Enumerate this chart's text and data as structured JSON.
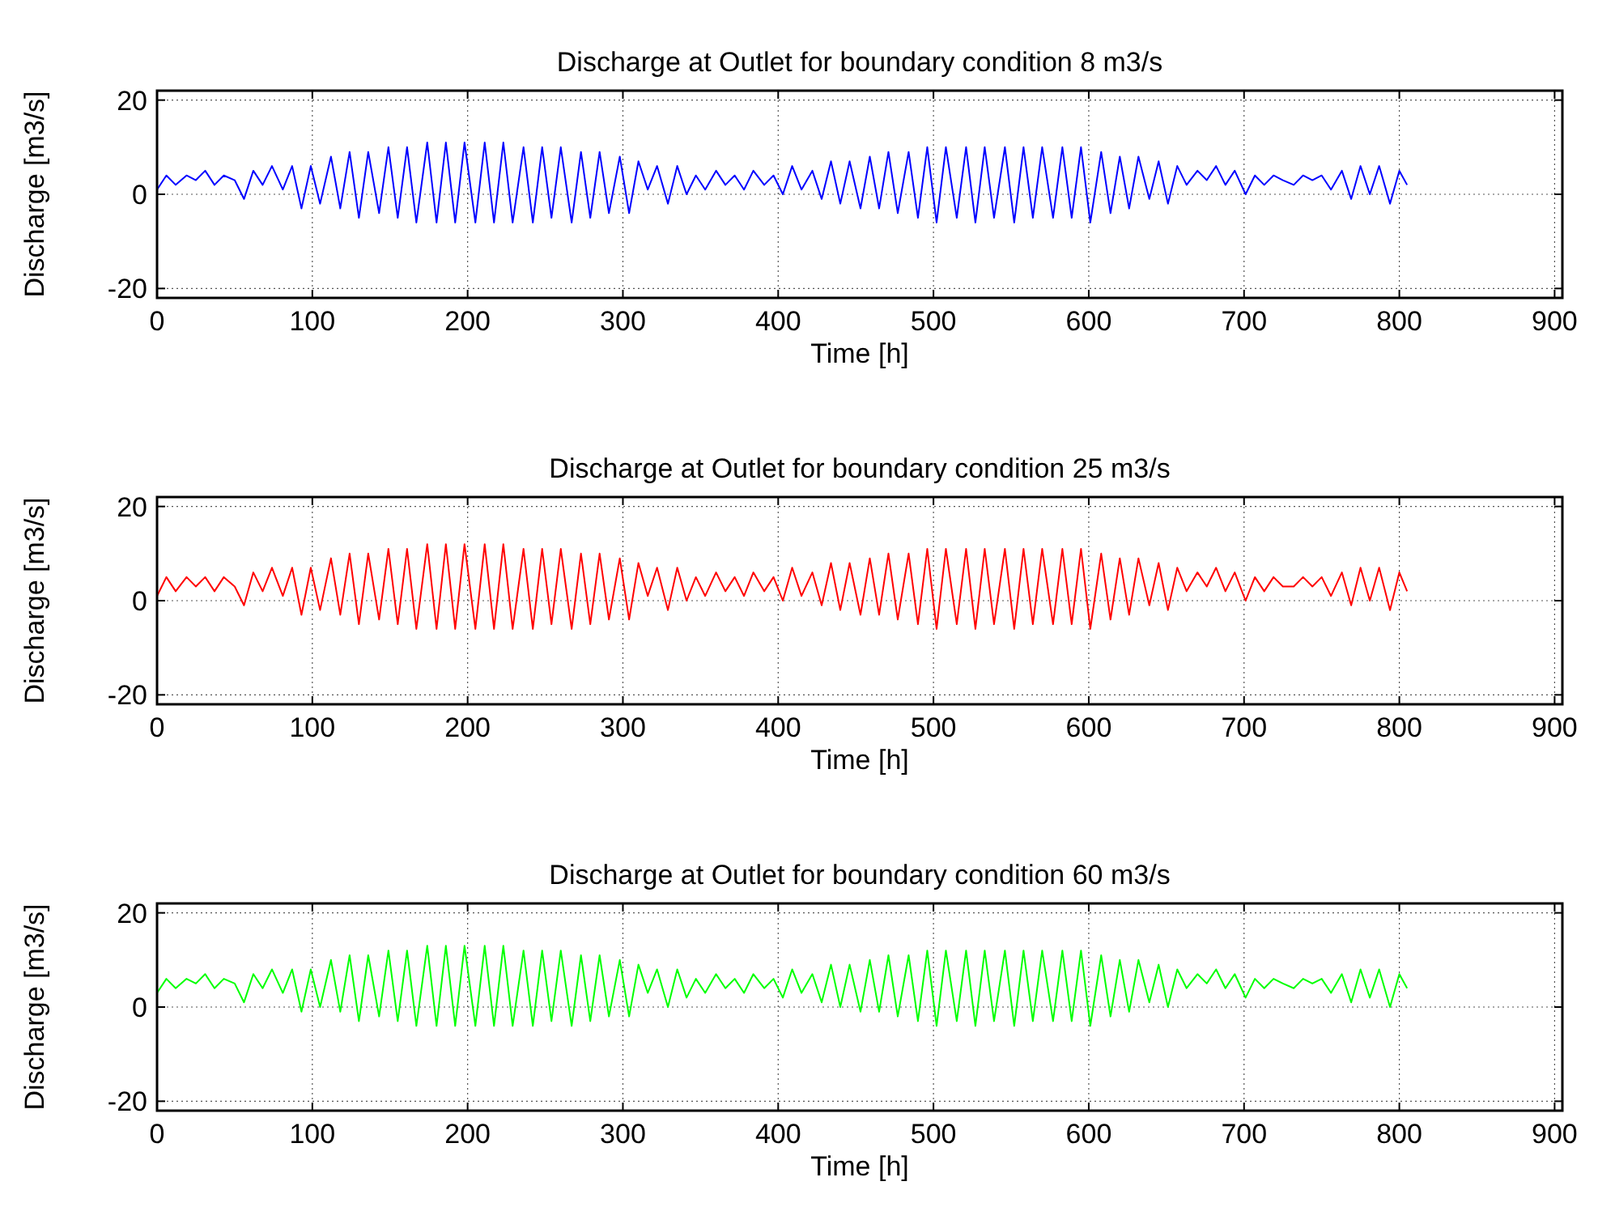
{
  "chart_data": [
    {
      "type": "line",
      "title": "Discharge at Outlet for boundary condition 8 m3/s",
      "xlabel": "Time [h]",
      "ylabel": "Discharge [m3/s]",
      "xlim": [
        0,
        905
      ],
      "ylim": [
        -22,
        22
      ],
      "xticks": [
        0,
        100,
        200,
        300,
        400,
        500,
        600,
        700,
        800,
        900
      ],
      "yticks": [
        -20,
        0,
        20
      ],
      "grid": true,
      "x": [
        0,
        6,
        12,
        19,
        25,
        31,
        37,
        43,
        50,
        56,
        62,
        68,
        74,
        81,
        87,
        93,
        99,
        105,
        112,
        118,
        124,
        130,
        136,
        143,
        149,
        155,
        161,
        167,
        174,
        180,
        186,
        192,
        198,
        205,
        211,
        217,
        223,
        229,
        236,
        242,
        248,
        254,
        260,
        267,
        273,
        279,
        285,
        291,
        298,
        304,
        310,
        316,
        322,
        329,
        335,
        341,
        347,
        353,
        360,
        366,
        372,
        378,
        384,
        391,
        397,
        403,
        409,
        415,
        422,
        428,
        434,
        440,
        446,
        453,
        459,
        465,
        471,
        477,
        484,
        490,
        496,
        502,
        508,
        515,
        521,
        527,
        533,
        539,
        546,
        552,
        558,
        564,
        570,
        577,
        583,
        589,
        595,
        601,
        608,
        614,
        620,
        626,
        632,
        639,
        645,
        651,
        657,
        663,
        670,
        676,
        682,
        688,
        694,
        701,
        707,
        713,
        719,
        725,
        732,
        738,
        744,
        750,
        756,
        763,
        769,
        775,
        781,
        787,
        794,
        800,
        805
      ],
      "series": [
        {
          "color": "#0000ff",
          "values": [
            1,
            4,
            2,
            4,
            3,
            5,
            2,
            4,
            3,
            -1,
            5,
            2,
            6,
            1,
            6,
            -3,
            6,
            -2,
            8,
            -3,
            9,
            -5,
            9,
            -4,
            10,
            -5,
            10,
            -6,
            11,
            -6,
            11,
            -6,
            11,
            -6,
            11,
            -6,
            11,
            -6,
            10,
            -6,
            10,
            -5,
            10,
            -6,
            9,
            -5,
            9,
            -4,
            8,
            -4,
            7,
            1,
            6,
            -2,
            6,
            0,
            4,
            1,
            5,
            2,
            4,
            1,
            5,
            2,
            4,
            0,
            6,
            1,
            5,
            -1,
            7,
            -2,
            7,
            -3,
            8,
            -3,
            9,
            -4,
            9,
            -5,
            10,
            -6,
            10,
            -5,
            10,
            -6,
            10,
            -5,
            10,
            -6,
            10,
            -5,
            10,
            -5,
            10,
            -5,
            10,
            -6,
            9,
            -4,
            8,
            -3,
            8,
            -1,
            7,
            -2,
            6,
            2,
            5,
            3,
            6,
            2,
            5,
            0,
            4,
            2,
            4,
            3,
            2,
            4,
            3,
            4,
            1,
            5,
            -1,
            6,
            0,
            6,
            -2,
            5,
            2
          ]
        }
      ]
    },
    {
      "type": "line",
      "title": "Discharge at Outlet for boundary condition 25 m3/s",
      "xlabel": "Time [h]",
      "ylabel": "Discharge [m3/s]",
      "xlim": [
        0,
        905
      ],
      "ylim": [
        -22,
        22
      ],
      "xticks": [
        0,
        100,
        200,
        300,
        400,
        500,
        600,
        700,
        800,
        900
      ],
      "yticks": [
        -20,
        0,
        20
      ],
      "grid": true,
      "x": [
        0,
        6,
        12,
        19,
        25,
        31,
        37,
        43,
        50,
        56,
        62,
        68,
        74,
        81,
        87,
        93,
        99,
        105,
        112,
        118,
        124,
        130,
        136,
        143,
        149,
        155,
        161,
        167,
        174,
        180,
        186,
        192,
        198,
        205,
        211,
        217,
        223,
        229,
        236,
        242,
        248,
        254,
        260,
        267,
        273,
        279,
        285,
        291,
        298,
        304,
        310,
        316,
        322,
        329,
        335,
        341,
        347,
        353,
        360,
        366,
        372,
        378,
        384,
        391,
        397,
        403,
        409,
        415,
        422,
        428,
        434,
        440,
        446,
        453,
        459,
        465,
        471,
        477,
        484,
        490,
        496,
        502,
        508,
        515,
        521,
        527,
        533,
        539,
        546,
        552,
        558,
        564,
        570,
        577,
        583,
        589,
        595,
        601,
        608,
        614,
        620,
        626,
        632,
        639,
        645,
        651,
        657,
        663,
        670,
        676,
        682,
        688,
        694,
        701,
        707,
        713,
        719,
        725,
        732,
        738,
        744,
        750,
        756,
        763,
        769,
        775,
        781,
        787,
        794,
        800,
        805
      ],
      "series": [
        {
          "color": "#ff0000",
          "values": [
            1,
            5,
            2,
            5,
            3,
            5,
            2,
            5,
            3,
            -1,
            6,
            2,
            7,
            1,
            7,
            -3,
            7,
            -2,
            9,
            -3,
            10,
            -5,
            10,
            -4,
            11,
            -5,
            11,
            -6,
            12,
            -6,
            12,
            -6,
            12,
            -6,
            12,
            -6,
            12,
            -6,
            11,
            -6,
            11,
            -5,
            11,
            -6,
            10,
            -5,
            10,
            -4,
            9,
            -4,
            8,
            1,
            7,
            -2,
            7,
            0,
            5,
            1,
            6,
            2,
            5,
            1,
            6,
            2,
            5,
            0,
            7,
            1,
            6,
            -1,
            8,
            -2,
            8,
            -3,
            9,
            -3,
            10,
            -4,
            10,
            -5,
            11,
            -6,
            11,
            -5,
            11,
            -6,
            11,
            -5,
            11,
            -6,
            11,
            -5,
            11,
            -5,
            11,
            -5,
            11,
            -6,
            10,
            -4,
            9,
            -3,
            9,
            -1,
            8,
            -2,
            7,
            2,
            6,
            3,
            7,
            2,
            6,
            0,
            5,
            2,
            5,
            3,
            3,
            5,
            3,
            5,
            1,
            6,
            -1,
            7,
            0,
            7,
            -2,
            6,
            2
          ]
        }
      ]
    },
    {
      "type": "line",
      "title": "Discharge at Outlet for boundary condition 60 m3/s",
      "xlabel": "Time [h]",
      "ylabel": "Discharge [m3/s]",
      "xlim": [
        0,
        905
      ],
      "ylim": [
        -22,
        22
      ],
      "xticks": [
        0,
        100,
        200,
        300,
        400,
        500,
        600,
        700,
        800,
        900
      ],
      "yticks": [
        -20,
        0,
        20
      ],
      "grid": true,
      "x": [
        0,
        6,
        12,
        19,
        25,
        31,
        37,
        43,
        50,
        56,
        62,
        68,
        74,
        81,
        87,
        93,
        99,
        105,
        112,
        118,
        124,
        130,
        136,
        143,
        149,
        155,
        161,
        167,
        174,
        180,
        186,
        192,
        198,
        205,
        211,
        217,
        223,
        229,
        236,
        242,
        248,
        254,
        260,
        267,
        273,
        279,
        285,
        291,
        298,
        304,
        310,
        316,
        322,
        329,
        335,
        341,
        347,
        353,
        360,
        366,
        372,
        378,
        384,
        391,
        397,
        403,
        409,
        415,
        422,
        428,
        434,
        440,
        446,
        453,
        459,
        465,
        471,
        477,
        484,
        490,
        496,
        502,
        508,
        515,
        521,
        527,
        533,
        539,
        546,
        552,
        558,
        564,
        570,
        577,
        583,
        589,
        595,
        601,
        608,
        614,
        620,
        626,
        632,
        639,
        645,
        651,
        657,
        663,
        670,
        676,
        682,
        688,
        694,
        701,
        707,
        713,
        719,
        725,
        732,
        738,
        744,
        750,
        756,
        763,
        769,
        775,
        781,
        787,
        794,
        800,
        805
      ],
      "series": [
        {
          "color": "#00ff00",
          "values": [
            3,
            6,
            4,
            6,
            5,
            7,
            4,
            6,
            5,
            1,
            7,
            4,
            8,
            3,
            8,
            -1,
            8,
            0,
            10,
            -1,
            11,
            -3,
            11,
            -2,
            12,
            -3,
            12,
            -4,
            13,
            -4,
            13,
            -4,
            13,
            -4,
            13,
            -4,
            13,
            -4,
            12,
            -4,
            12,
            -3,
            12,
            -4,
            11,
            -3,
            11,
            -2,
            10,
            -2,
            9,
            3,
            8,
            0,
            8,
            2,
            6,
            3,
            7,
            4,
            6,
            3,
            7,
            4,
            6,
            2,
            8,
            3,
            7,
            1,
            9,
            0,
            9,
            -1,
            10,
            -1,
            11,
            -2,
            11,
            -3,
            12,
            -4,
            12,
            -3,
            12,
            -4,
            12,
            -3,
            12,
            -4,
            12,
            -3,
            12,
            -3,
            12,
            -3,
            12,
            -4,
            11,
            -2,
            10,
            -1,
            10,
            1,
            9,
            0,
            8,
            4,
            7,
            5,
            8,
            4,
            7,
            2,
            6,
            4,
            6,
            5,
            4,
            6,
            5,
            6,
            3,
            7,
            1,
            8,
            2,
            8,
            0,
            7,
            4
          ]
        }
      ]
    }
  ]
}
